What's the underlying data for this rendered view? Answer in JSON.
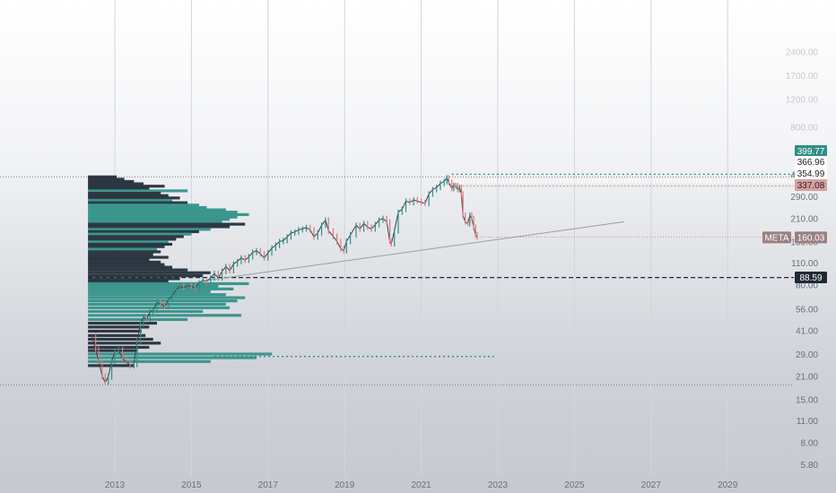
{
  "chart_data": {
    "type": "line",
    "title": "",
    "symbol": "META",
    "last_price": 160.03,
    "scale": "log",
    "xlim": [
      2012.4,
      2030.3
    ],
    "ylim": [
      5,
      2300
    ],
    "x_ticks": [
      "2013",
      "2015",
      "2017",
      "2019",
      "2021",
      "2023",
      "2025",
      "2027",
      "2029"
    ],
    "y_ticks": [
      "5.80",
      "8.00",
      "11.00",
      "15.00",
      "21.00",
      "29.00",
      "41.00",
      "56.00",
      "80.00",
      "110.00",
      "150.00",
      "210.00",
      "290.00",
      "400.00",
      "800.00",
      "1200.00",
      "1700.00",
      "2400.00"
    ],
    "faded_y_ticks": [
      "800.00",
      "1200.00",
      "1700.00",
      "2400.00"
    ],
    "price_levels": [
      {
        "label": "399.77",
        "value": 399.77,
        "style": "teal-dotted",
        "bg": "#2f8f87",
        "fg": "#ffffff"
      },
      {
        "label": "366.96",
        "value": 366.96,
        "style": "white-dotted",
        "bg": "#ffffff",
        "fg": "#222222"
      },
      {
        "label": "354.99",
        "value": 354.99,
        "style": "white-dotted",
        "bg": "#ffffff",
        "fg": "#222222"
      },
      {
        "label": "337.08",
        "value": 337.08,
        "style": "pink-dotted",
        "bg": "#d6a0a0",
        "fg": "#2a1f1f"
      },
      {
        "label": "88.59",
        "value": 88.59,
        "style": "black-dashed",
        "bg": "#1f2a36",
        "fg": "#ffffff"
      }
    ],
    "horizontal_lines": [
      {
        "value": 385,
        "style": "gray-dotted",
        "from": "start"
      },
      {
        "value": 18.5,
        "style": "gray-dotted",
        "from": "start"
      },
      {
        "value": 28.0,
        "style": "teal-dotted",
        "from": 2015.6,
        "to": 2022.9
      }
    ],
    "trendline": {
      "from": [
        2015.4,
        85
      ],
      "to": [
        2026.3,
        200
      ]
    },
    "price_series": [
      [
        2012.4,
        38
      ],
      [
        2012.5,
        31
      ],
      [
        2012.58,
        26
      ],
      [
        2012.67,
        21
      ],
      [
        2012.75,
        19.2
      ],
      [
        2012.83,
        20.8
      ],
      [
        2012.92,
        26
      ],
      [
        2013.0,
        30
      ],
      [
        2013.1,
        31
      ],
      [
        2013.2,
        27
      ],
      [
        2013.3,
        26
      ],
      [
        2013.4,
        24.5
      ],
      [
        2013.5,
        25
      ],
      [
        2013.58,
        35
      ],
      [
        2013.67,
        45
      ],
      [
        2013.75,
        50
      ],
      [
        2013.83,
        48
      ],
      [
        2013.92,
        54
      ],
      [
        2014.0,
        55
      ],
      [
        2014.1,
        62
      ],
      [
        2014.2,
        60
      ],
      [
        2014.3,
        58
      ],
      [
        2014.4,
        64
      ],
      [
        2014.5,
        68
      ],
      [
        2014.6,
        74
      ],
      [
        2014.7,
        78
      ],
      [
        2014.8,
        76
      ],
      [
        2014.9,
        79
      ],
      [
        2015.0,
        78
      ],
      [
        2015.1,
        76
      ],
      [
        2015.2,
        82
      ],
      [
        2015.3,
        85
      ],
      [
        2015.4,
        84
      ],
      [
        2015.5,
        88
      ],
      [
        2015.6,
        94
      ],
      [
        2015.7,
        88
      ],
      [
        2015.8,
        97
      ],
      [
        2015.9,
        104
      ],
      [
        2016.0,
        98
      ],
      [
        2016.1,
        108
      ],
      [
        2016.2,
        112
      ],
      [
        2016.3,
        118
      ],
      [
        2016.4,
        114
      ],
      [
        2016.5,
        120
      ],
      [
        2016.6,
        128
      ],
      [
        2016.7,
        131
      ],
      [
        2016.8,
        125
      ],
      [
        2016.9,
        118
      ],
      [
        2017.0,
        127
      ],
      [
        2017.1,
        136
      ],
      [
        2017.2,
        142
      ],
      [
        2017.3,
        150
      ],
      [
        2017.4,
        152
      ],
      [
        2017.5,
        160
      ],
      [
        2017.6,
        170
      ],
      [
        2017.7,
        172
      ],
      [
        2017.8,
        178
      ],
      [
        2017.9,
        180
      ],
      [
        2018.0,
        184
      ],
      [
        2018.1,
        178
      ],
      [
        2018.2,
        160
      ],
      [
        2018.3,
        170
      ],
      [
        2018.4,
        190
      ],
      [
        2018.5,
        205
      ],
      [
        2018.58,
        175
      ],
      [
        2018.7,
        162
      ],
      [
        2018.8,
        150
      ],
      [
        2018.9,
        135
      ],
      [
        2018.98,
        131
      ],
      [
        2019.05,
        150
      ],
      [
        2019.15,
        165
      ],
      [
        2019.3,
        190
      ],
      [
        2019.4,
        180
      ],
      [
        2019.5,
        195
      ],
      [
        2019.6,
        185
      ],
      [
        2019.7,
        180
      ],
      [
        2019.8,
        192
      ],
      [
        2019.9,
        205
      ],
      [
        2020.0,
        210
      ],
      [
        2020.1,
        200
      ],
      [
        2020.18,
        150
      ],
      [
        2020.22,
        145
      ],
      [
        2020.3,
        175
      ],
      [
        2020.4,
        230
      ],
      [
        2020.5,
        240
      ],
      [
        2020.6,
        270
      ],
      [
        2020.7,
        265
      ],
      [
        2020.8,
        275
      ],
      [
        2020.9,
        270
      ],
      [
        2021.0,
        265
      ],
      [
        2021.1,
        262
      ],
      [
        2021.2,
        300
      ],
      [
        2021.3,
        320
      ],
      [
        2021.4,
        330
      ],
      [
        2021.5,
        350
      ],
      [
        2021.6,
        360
      ],
      [
        2021.67,
        380
      ],
      [
        2021.72,
        355
      ],
      [
        2021.8,
        325
      ],
      [
        2021.85,
        340
      ],
      [
        2021.9,
        338
      ],
      [
        2021.95,
        320
      ],
      [
        2022.0,
        330
      ],
      [
        2022.05,
        300
      ],
      [
        2022.09,
        220
      ],
      [
        2022.15,
        200
      ],
      [
        2022.22,
        195
      ],
      [
        2022.27,
        220
      ],
      [
        2022.32,
        210
      ],
      [
        2022.37,
        185
      ],
      [
        2022.42,
        165
      ],
      [
        2022.46,
        160.03
      ]
    ],
    "volume_profile": {
      "start_year": 2012.3,
      "bars": [
        {
          "y": 385,
          "width": 0.75,
          "color": "#1f2a36"
        },
        {
          "y": 372,
          "width": 0.95,
          "color": "#1f2a36"
        },
        {
          "y": 360,
          "width": 1.2,
          "color": "#1f2a36"
        },
        {
          "y": 348,
          "width": 1.45,
          "color": "#1f2a36"
        },
        {
          "y": 336,
          "width": 2.0,
          "color": "#1f2a36"
        },
        {
          "y": 325,
          "width": 1.6,
          "color": "#1f2a36"
        },
        {
          "y": 314,
          "width": 2.6,
          "color": "#2f8f87"
        },
        {
          "y": 303,
          "width": 1.9,
          "color": "#1f2a36"
        },
        {
          "y": 293,
          "width": 2.1,
          "color": "#1f2a36"
        },
        {
          "y": 283,
          "width": 2.4,
          "color": "#1f2a36"
        },
        {
          "y": 273,
          "width": 2.2,
          "color": "#2f8f87"
        },
        {
          "y": 264,
          "width": 2.6,
          "color": "#1f2a36"
        },
        {
          "y": 255,
          "width": 2.9,
          "color": "#2f8f87"
        },
        {
          "y": 246,
          "width": 3.1,
          "color": "#2f8f87"
        },
        {
          "y": 238,
          "width": 3.6,
          "color": "#2f8f87"
        },
        {
          "y": 230,
          "width": 3.9,
          "color": "#2f8f87"
        },
        {
          "y": 222,
          "width": 4.2,
          "color": "#2f8f87"
        },
        {
          "y": 214,
          "width": 3.9,
          "color": "#2f8f87"
        },
        {
          "y": 207,
          "width": 3.7,
          "color": "#2f8f87"
        },
        {
          "y": 200,
          "width": 3.5,
          "color": "#2f8f87"
        },
        {
          "y": 193,
          "width": 4.1,
          "color": "#1f2a36"
        },
        {
          "y": 186,
          "width": 3.7,
          "color": "#1f2a36"
        },
        {
          "y": 179,
          "width": 3.2,
          "color": "#2f8f87"
        },
        {
          "y": 173,
          "width": 2.9,
          "color": "#1f2a36"
        },
        {
          "y": 167,
          "width": 2.7,
          "color": "#2f8f87"
        },
        {
          "y": 161,
          "width": 2.5,
          "color": "#1f2a36"
        },
        {
          "y": 155,
          "width": 2.3,
          "color": "#1f2a36"
        },
        {
          "y": 149,
          "width": 2.1,
          "color": "#2f8f87"
        },
        {
          "y": 144,
          "width": 2.2,
          "color": "#1f2a36"
        },
        {
          "y": 139,
          "width": 2.0,
          "color": "#1f2a36"
        },
        {
          "y": 134,
          "width": 1.8,
          "color": "#2f8f87"
        },
        {
          "y": 129,
          "width": 1.9,
          "color": "#1f2a36"
        },
        {
          "y": 124,
          "width": 1.7,
          "color": "#1f2a36"
        },
        {
          "y": 119,
          "width": 2.1,
          "color": "#1f2a36"
        },
        {
          "y": 115,
          "width": 1.6,
          "color": "#1f2a36"
        },
        {
          "y": 111,
          "width": 1.9,
          "color": "#1f2a36"
        },
        {
          "y": 107,
          "width": 2.0,
          "color": "#1f2a36"
        },
        {
          "y": 103,
          "width": 2.2,
          "color": "#1f2a36"
        },
        {
          "y": 99,
          "width": 2.6,
          "color": "#1f2a36"
        },
        {
          "y": 95,
          "width": 3.2,
          "color": "#1f2a36"
        },
        {
          "y": 91,
          "width": 3.0,
          "color": "#1f2a36"
        },
        {
          "y": 87,
          "width": 2.4,
          "color": "#1f2a36"
        },
        {
          "y": 84,
          "width": 2.1,
          "color": "#1f2a36"
        },
        {
          "y": 81,
          "width": 4.2,
          "color": "#2f8f87"
        },
        {
          "y": 78,
          "width": 3.4,
          "color": "#2f8f87"
        },
        {
          "y": 75,
          "width": 3.8,
          "color": "#2f8f87"
        },
        {
          "y": 72,
          "width": 3.2,
          "color": "#2f8f87"
        },
        {
          "y": 69,
          "width": 3.6,
          "color": "#2f8f87"
        },
        {
          "y": 66,
          "width": 4.1,
          "color": "#2f8f87"
        },
        {
          "y": 63,
          "width": 3.9,
          "color": "#2f8f87"
        },
        {
          "y": 60,
          "width": 3.6,
          "color": "#2f8f87"
        },
        {
          "y": 57,
          "width": 3.7,
          "color": "#2f8f87"
        },
        {
          "y": 54,
          "width": 3.0,
          "color": "#2f8f87"
        },
        {
          "y": 51,
          "width": 4.0,
          "color": "#2f8f87"
        },
        {
          "y": 48,
          "width": 2.6,
          "color": "#2f8f87"
        },
        {
          "y": 45.5,
          "width": 1.8,
          "color": "#1f2a36"
        },
        {
          "y": 43,
          "width": 1.6,
          "color": "#1f2a36"
        },
        {
          "y": 40.5,
          "width": 1.4,
          "color": "#1f2a36"
        },
        {
          "y": 38,
          "width": 1.5,
          "color": "#1f2a36"
        },
        {
          "y": 36,
          "width": 1.7,
          "color": "#1f2a36"
        },
        {
          "y": 34,
          "width": 1.9,
          "color": "#1f2a36"
        },
        {
          "y": 32,
          "width": 1.6,
          "color": "#1f2a36"
        },
        {
          "y": 30.5,
          "width": 1.3,
          "color": "#1f2a36"
        },
        {
          "y": 29,
          "width": 4.8,
          "color": "#2f8f87"
        },
        {
          "y": 27.5,
          "width": 4.4,
          "color": "#2f8f87"
        },
        {
          "y": 26,
          "width": 3.2,
          "color": "#2f8f87"
        },
        {
          "y": 24.5,
          "width": 1.2,
          "color": "#1f2a36"
        }
      ]
    }
  }
}
